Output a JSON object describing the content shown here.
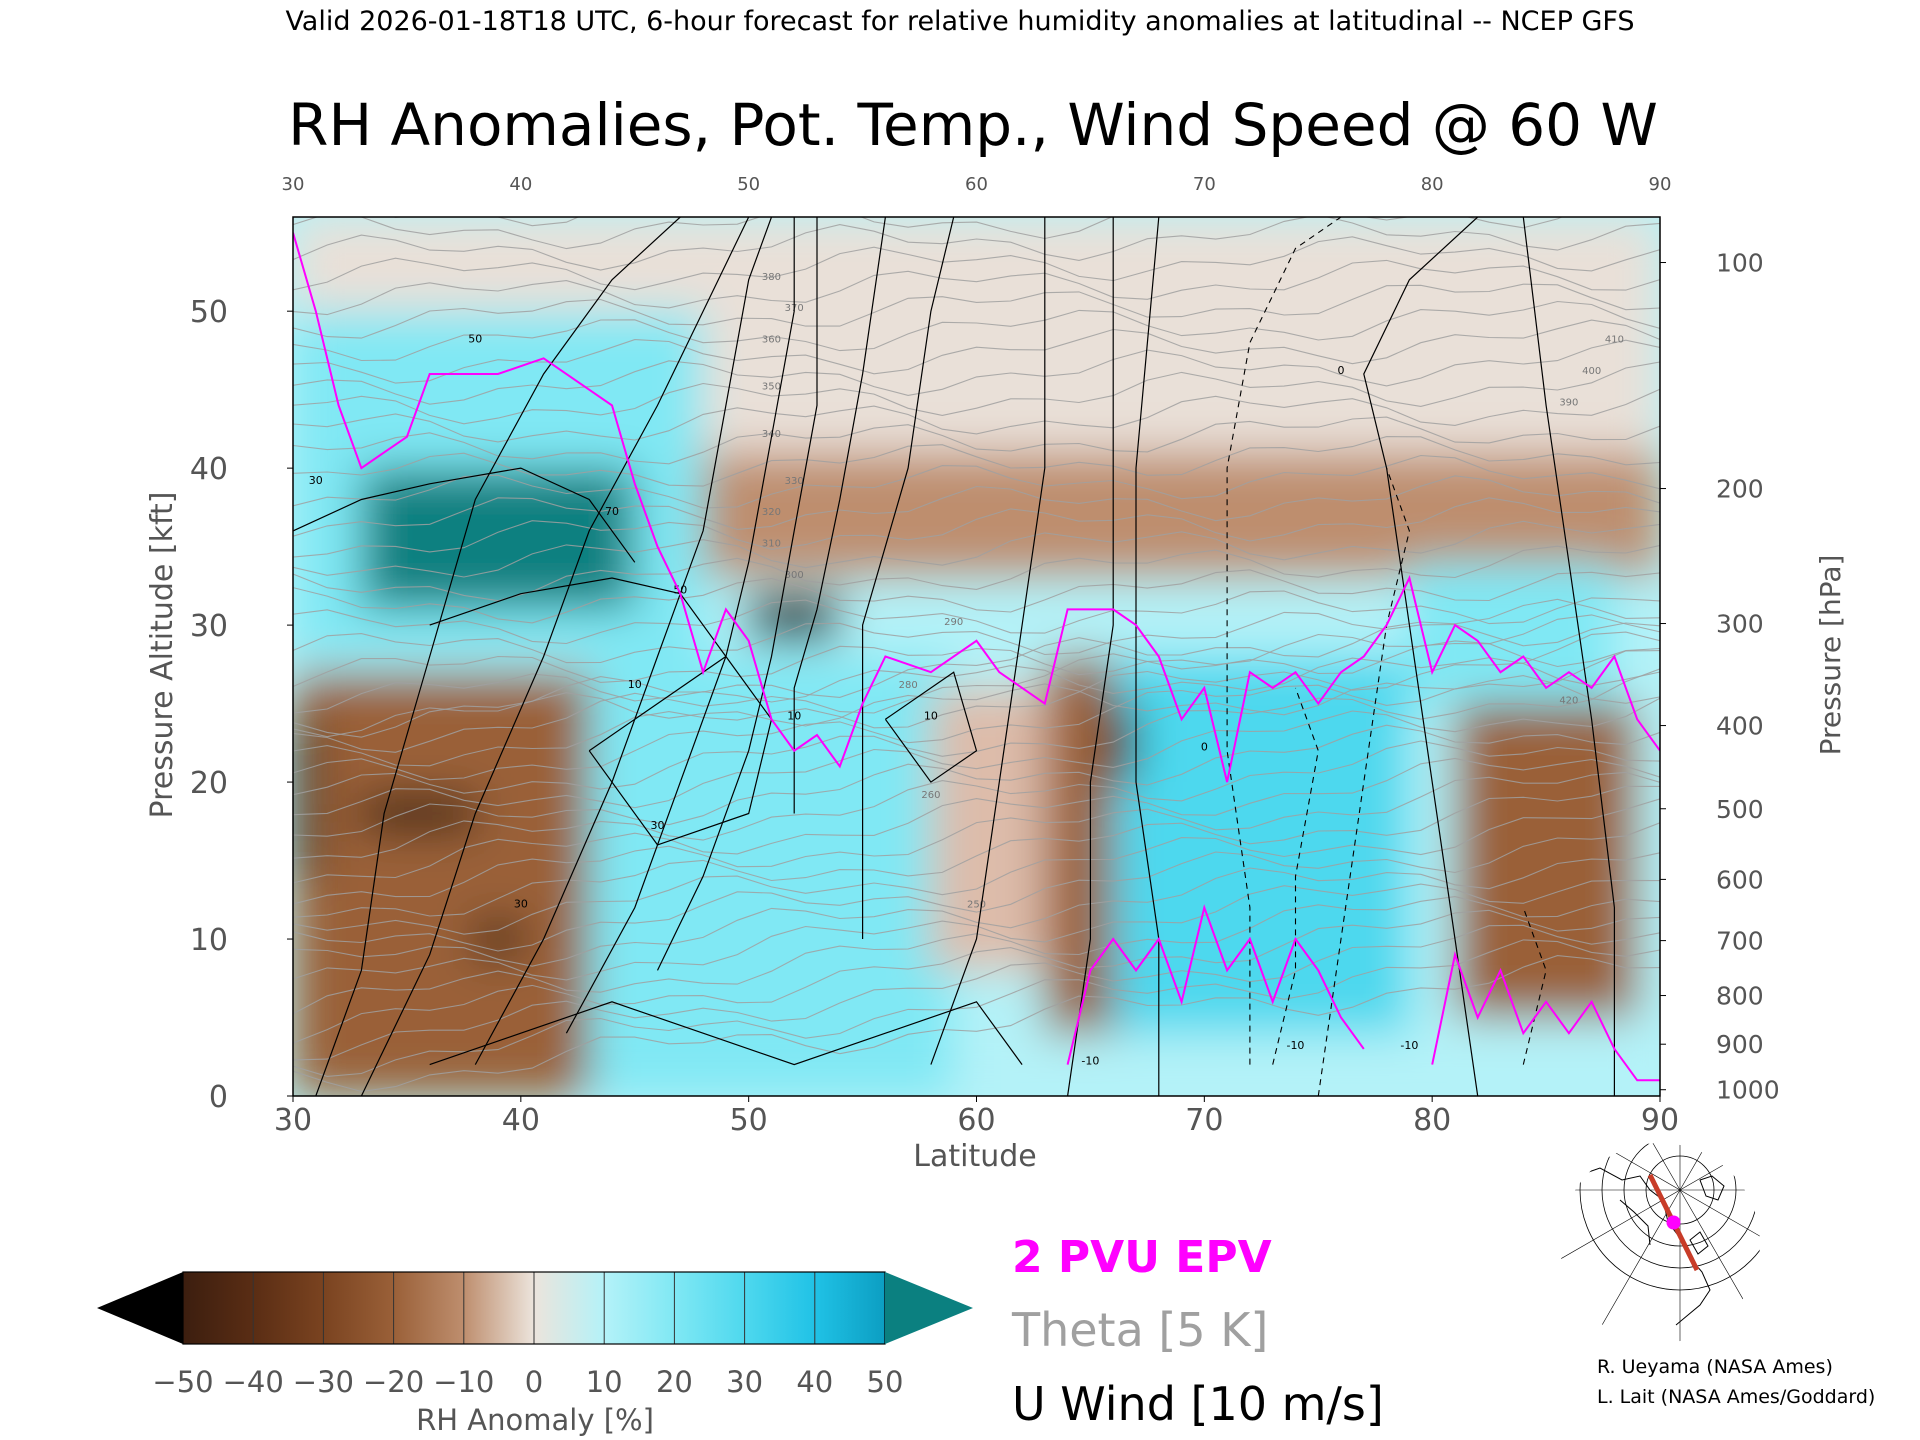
{
  "header": "Valid 2026-01-18T18 UTC, 6-hour forecast for relative humidity anomalies at latitudinal -- NCEP GFS",
  "colors": {
    "epv": "#ff00ff",
    "theta": "#a0a0a0",
    "wind": "#000000",
    "track": "#c83c28",
    "marker": "#ff00ff"
  },
  "chart_data": {
    "type": "heatmap",
    "title": "RH Anomalies, Pot. Temp., Wind Speed @ 60 W",
    "xlabel": "Latitude",
    "ylabel": "Pressure Altitude [kft]",
    "ylabel_right": "Pressure [hPa]",
    "xlim": [
      30,
      90
    ],
    "ylim": [
      0,
      56
    ],
    "x_ticks": [
      "30",
      "40",
      "50",
      "60",
      "70",
      "80",
      "90"
    ],
    "top_ticks": [
      "30",
      "40",
      "50",
      "60",
      "70",
      "80",
      "90"
    ],
    "y_ticks": [
      "0",
      "10",
      "20",
      "30",
      "40",
      "50"
    ],
    "pressure_ticks": [
      {
        "label": "1000",
        "kft": 0.4
      },
      {
        "label": "900",
        "kft": 3.3
      },
      {
        "label": "800",
        "kft": 6.4
      },
      {
        "label": "700",
        "kft": 9.9
      },
      {
        "label": "600",
        "kft": 13.8
      },
      {
        "label": "500",
        "kft": 18.3
      },
      {
        "label": "400",
        "kft": 23.6
      },
      {
        "label": "300",
        "kft": 30.1
      },
      {
        "label": "200",
        "kft": 38.7
      },
      {
        "label": "100",
        "kft": 53.1
      }
    ],
    "legend": {
      "epv_label": "2 PVU EPV",
      "theta_label": "Theta [5 K]",
      "wind_label": "U Wind [10 m/s]"
    },
    "colorbar": {
      "label": "RH Anomaly [%]",
      "tick_labels": [
        "−50",
        "−40",
        "−30",
        "−20",
        "−10",
        "0",
        "10",
        "20",
        "30",
        "40",
        "50"
      ],
      "colors": [
        "#3c1e0f",
        "#5a2d14",
        "#7a4320",
        "#9a6038",
        "#be8e6e",
        "#ddbcaa",
        "#e9e0d8",
        "#d4f6f8",
        "#b4f2f8",
        "#80e8f4",
        "#4ed8ee",
        "#20c2e6",
        "#0c9ec2",
        "#0b8080"
      ]
    },
    "rh_regions": [
      {
        "lat": [
          30,
          90
        ],
        "kft": [
          41,
          56
        ],
        "rh": -10
      },
      {
        "lat": [
          30,
          90
        ],
        "kft": [
          33,
          41
        ],
        "rh": -25
      },
      {
        "lat": [
          30,
          90
        ],
        "kft": [
          0,
          33
        ],
        "rh": 15
      },
      {
        "lat": [
          30,
          48
        ],
        "kft": [
          28,
          50
        ],
        "rh": 25
      },
      {
        "lat": [
          33,
          45
        ],
        "kft": [
          31,
          40
        ],
        "rh": 55
      },
      {
        "lat": [
          30,
          47
        ],
        "kft": [
          0,
          27
        ],
        "rh": -35
      },
      {
        "lat": [
          43,
          59
        ],
        "kft": [
          0,
          28
        ],
        "rh": 25
      },
      {
        "lat": [
          58,
          63
        ],
        "kft": [
          8,
          26
        ],
        "rh": -15
      },
      {
        "lat": [
          63,
          69
        ],
        "kft": [
          4,
          28
        ],
        "rh": -40
      },
      {
        "lat": [
          66,
          79
        ],
        "kft": [
          4,
          28
        ],
        "rh": 30
      },
      {
        "lat": [
          81,
          89
        ],
        "kft": [
          5,
          25
        ],
        "rh": -35
      },
      {
        "lat": [
          79,
          88
        ],
        "kft": [
          25,
          34
        ],
        "rh": 25
      },
      {
        "lat": [
          50,
          54
        ],
        "kft": [
          29,
          32
        ],
        "rh": -55
      },
      {
        "lat": [
          30,
          31
        ],
        "kft": [
          14,
          24
        ],
        "rh": -55
      },
      {
        "lat": [
          33,
          38
        ],
        "kft": [
          17,
          19
        ],
        "rh": -55
      },
      {
        "lat": [
          38,
          40
        ],
        "kft": [
          9,
          11
        ],
        "rh": -55
      },
      {
        "lat": [
          66,
          67
        ],
        "kft": [
          20,
          25
        ],
        "rh": -55
      }
    ],
    "theta_levels": [
      "250",
      "260",
      "280",
      "290",
      "300",
      "310",
      "320",
      "330",
      "340",
      "350",
      "360",
      "370",
      "380",
      "390",
      "400",
      "410",
      "420"
    ],
    "wind_labels": [
      "30",
      "50",
      "70",
      "10",
      "30",
      "10",
      "-10",
      "0",
      "-10",
      "-10",
      "50",
      "30",
      "10",
      "0"
    ],
    "credits": [
      "R. Ueyama (NASA Ames)",
      "L. Lait (NASA Ames/Goddard)"
    ]
  },
  "map": {
    "description_label": "",
    "track_lat_start": 90,
    "track_lat_end": 30,
    "marker_lat": 60
  }
}
